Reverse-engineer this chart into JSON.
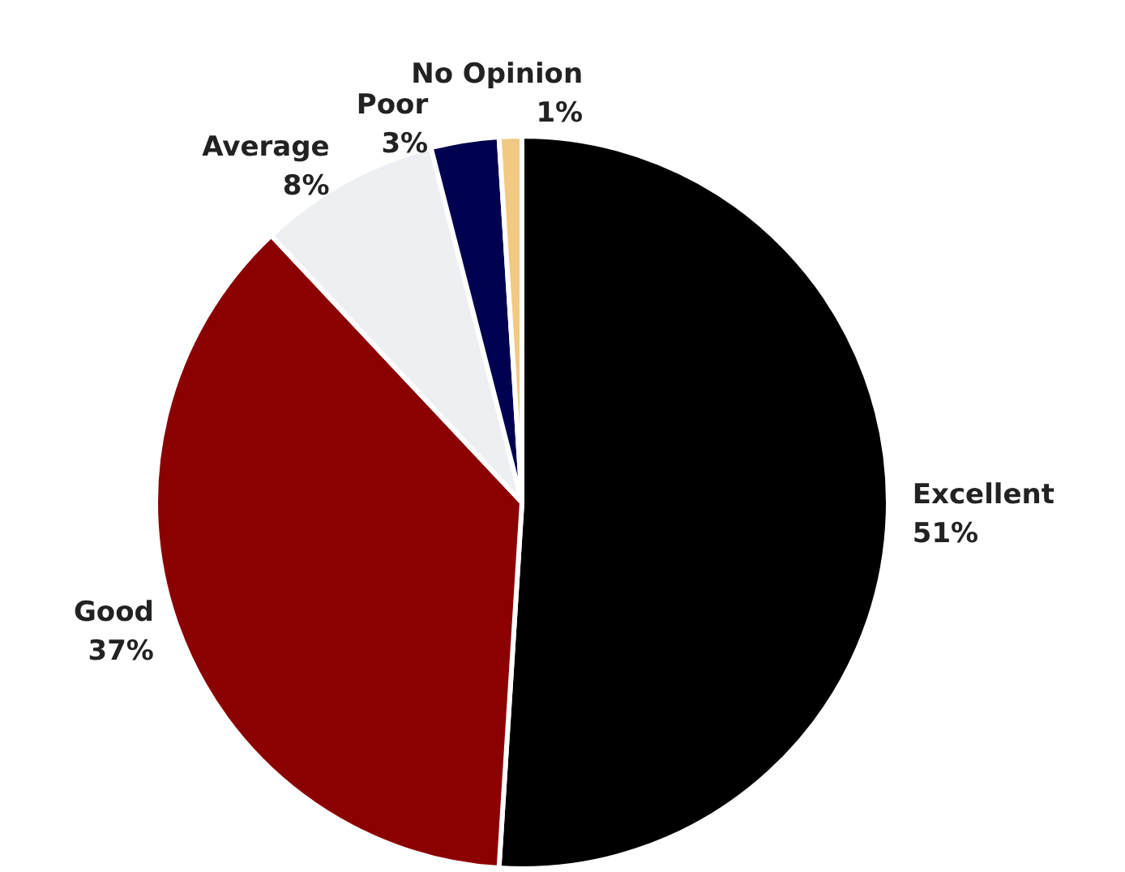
{
  "chart_data": {
    "type": "pie",
    "categories": [
      "Excellent",
      "Good",
      "Average",
      "Poor",
      "No Opinion"
    ],
    "values": [
      51,
      37,
      8,
      3,
      1
    ],
    "colors": [
      "#000000",
      "#8b0000",
      "#eeeff3",
      "#000050",
      "#f2c982"
    ],
    "value_labels": [
      "51%",
      "37%",
      "8%",
      "3%",
      "1%"
    ],
    "legend": false
  }
}
